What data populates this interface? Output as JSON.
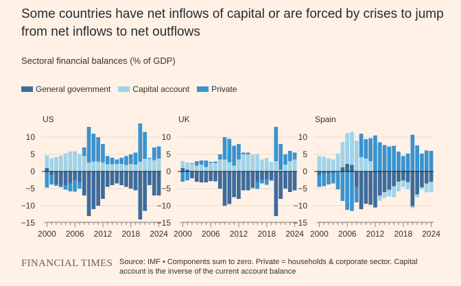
{
  "title": "Some countries have net inflows of capital or are forced by crises to jump from net inflows to net outflows",
  "subtitle": "Sectoral financial balances (% of GDP)",
  "legend": [
    {
      "label": "General government",
      "color": "#3e6b9c"
    },
    {
      "label": "Capital account",
      "color": "#9fd3ea"
    },
    {
      "label": "Private",
      "color": "#3a93cf"
    }
  ],
  "footer": {
    "brand": "FINANCIAL TIMES",
    "source": "Source: IMF • Components sum to zero. Private = households & corporate sector. Capital account is the inverse of the current account balance"
  },
  "chart_data": [
    {
      "type": "bar",
      "title": "US",
      "x": [
        2000,
        2001,
        2002,
        2003,
        2004,
        2005,
        2006,
        2007,
        2008,
        2009,
        2010,
        2011,
        2012,
        2013,
        2014,
        2015,
        2016,
        2017,
        2018,
        2019,
        2020,
        2021,
        2022,
        2023,
        2024
      ],
      "xticks": [
        "2000",
        "2006",
        "2012",
        "2018",
        "2024"
      ],
      "yticks": [
        "10",
        "5",
        "0",
        "−5",
        "−10",
        "−15"
      ],
      "ylim": [
        -15,
        12
      ],
      "series": [
        {
          "name": "General government",
          "values": [
            1.0,
            -1.0,
            -3.5,
            -4.0,
            -4.0,
            -3.5,
            -2.5,
            -3.0,
            -7.0,
            -13.0,
            -11.0,
            -10.0,
            -8.0,
            -4.5,
            -4.0,
            -3.5,
            -4.0,
            -4.5,
            -5.0,
            -5.5,
            -14.0,
            -11.5,
            -4.0,
            -7.0,
            -7.0
          ]
        },
        {
          "name": "Capital account",
          "values": [
            3.7,
            3.8,
            4.2,
            4.6,
            5.3,
            5.8,
            5.9,
            5.0,
            4.5,
            2.6,
            2.9,
            2.9,
            2.6,
            2.1,
            2.1,
            2.2,
            2.2,
            1.9,
            2.2,
            2.0,
            2.8,
            3.7,
            3.8,
            3.3,
            3.8
          ]
        },
        {
          "name": "Private",
          "values": [
            -4.7,
            -2.8,
            -0.7,
            -0.6,
            -1.3,
            -2.3,
            -3.4,
            -2.0,
            2.5,
            10.4,
            8.1,
            7.1,
            5.4,
            2.4,
            1.9,
            1.3,
            1.8,
            2.6,
            2.8,
            3.5,
            11.2,
            7.8,
            0.2,
            3.7,
            3.5
          ]
        }
      ]
    },
    {
      "type": "bar",
      "title": "UK",
      "x": [
        2000,
        2001,
        2002,
        2003,
        2004,
        2005,
        2006,
        2007,
        2008,
        2009,
        2010,
        2011,
        2012,
        2013,
        2014,
        2015,
        2016,
        2017,
        2018,
        2019,
        2020,
        2021,
        2022,
        2023,
        2024
      ],
      "xticks": [
        "2000",
        "2006",
        "2012",
        "2018",
        "2024"
      ],
      "yticks": [
        "10",
        "5",
        "0",
        "−5",
        "−10",
        "−15"
      ],
      "ylim": [
        -15,
        12
      ],
      "series": [
        {
          "name": "General government",
          "values": [
            1.0,
            0.5,
            -2.0,
            -3.0,
            -3.2,
            -3.2,
            -2.8,
            -2.9,
            -5.0,
            -10.0,
            -9.5,
            -7.5,
            -8.0,
            -5.5,
            -5.5,
            -4.5,
            -3.0,
            -2.4,
            -2.2,
            -2.4,
            -13.0,
            -8.0,
            -5.0,
            -6.0,
            -5.5
          ]
        },
        {
          "name": "Capital account",
          "values": [
            2.0,
            2.1,
            2.2,
            1.7,
            2.0,
            1.3,
            2.5,
            2.5,
            3.5,
            3.5,
            2.7,
            1.7,
            3.5,
            5.0,
            5.0,
            4.9,
            5.1,
            3.5,
            3.9,
            2.7,
            3.0,
            0.5,
            2.0,
            3.0,
            3.5
          ]
        },
        {
          "name": "Private",
          "values": [
            -3.0,
            -2.6,
            0.2,
            1.3,
            1.2,
            1.9,
            0.3,
            0.4,
            1.5,
            6.5,
            6.8,
            5.8,
            4.5,
            0.5,
            0.5,
            -0.4,
            -2.1,
            -1.1,
            -1.7,
            -0.3,
            10.0,
            7.5,
            3.0,
            3.0,
            2.0
          ]
        }
      ]
    },
    {
      "type": "bar",
      "title": "Spain",
      "x": [
        2000,
        2001,
        2002,
        2003,
        2004,
        2005,
        2006,
        2007,
        2008,
        2009,
        2010,
        2011,
        2012,
        2013,
        2014,
        2015,
        2016,
        2017,
        2018,
        2019,
        2020,
        2021,
        2022,
        2023,
        2024
      ],
      "xticks": [
        "2000",
        "2006",
        "2012",
        "2018",
        "2024"
      ],
      "yticks": [
        "10",
        "5",
        "0",
        "−5",
        "−10",
        "−15"
      ],
      "ylim": [
        -15,
        12
      ],
      "series": [
        {
          "name": "General government",
          "values": [
            -1.0,
            -0.5,
            -0.5,
            -0.4,
            0.0,
            1.2,
            2.2,
            1.9,
            -4.6,
            -11.0,
            -9.4,
            -9.7,
            -10.5,
            -7.0,
            -6.0,
            -5.3,
            -4.3,
            -3.0,
            -2.6,
            -3.1,
            -10.1,
            -6.7,
            -4.6,
            -3.5,
            -3.0
          ]
        },
        {
          "name": "Capital account",
          "values": [
            4.5,
            4.3,
            3.8,
            3.5,
            5.2,
            7.4,
            9.0,
            9.6,
            9.0,
            4.2,
            3.8,
            3.0,
            0.0,
            -1.5,
            -1.7,
            -2.0,
            -3.2,
            -2.8,
            -1.9,
            -2.1,
            -0.6,
            -0.9,
            -0.6,
            -2.6,
            -3.0
          ]
        },
        {
          "name": "Private",
          "values": [
            -3.5,
            -3.8,
            -3.3,
            -3.1,
            -5.2,
            -8.6,
            -11.2,
            -11.5,
            -4.4,
            6.8,
            5.6,
            6.7,
            10.5,
            8.5,
            7.7,
            7.3,
            7.5,
            5.8,
            4.5,
            5.2,
            10.7,
            7.6,
            5.2,
            6.1,
            6.0
          ]
        }
      ]
    }
  ]
}
